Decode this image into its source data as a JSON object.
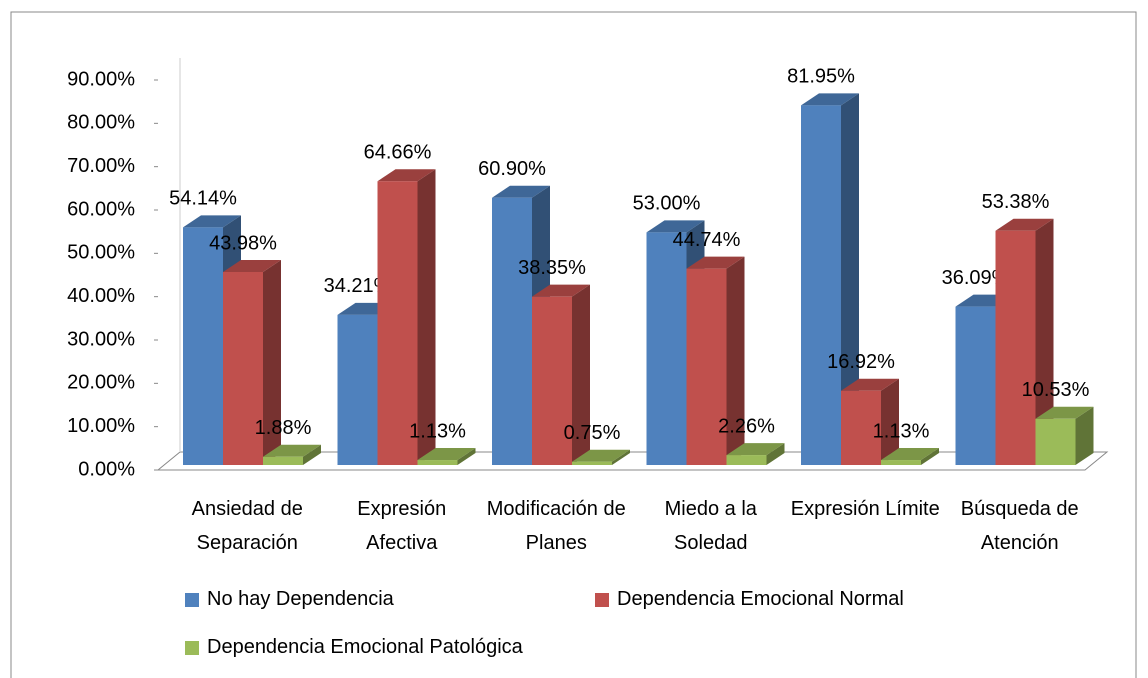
{
  "chart_data": {
    "type": "bar3d",
    "categories": [
      "Ansiedad de Separación",
      "Expresión Afectiva",
      "Modificación de Planes",
      "Miedo a la Soledad",
      "Expresión Límite",
      "Búsqueda de Atención"
    ],
    "series": [
      {
        "name": "No hay Dependencia",
        "color": "#4f81bd",
        "values": [
          54.14,
          34.21,
          60.9,
          53.0,
          81.95,
          36.09
        ],
        "value_labels": [
          "54.14%",
          "34.21%",
          "60.90%",
          "53.00%",
          "81.95%",
          "36.09%"
        ]
      },
      {
        "name": "Dependencia Emocional Normal",
        "color": "#c0504d",
        "values": [
          43.98,
          64.66,
          38.35,
          44.74,
          16.92,
          53.38
        ],
        "value_labels": [
          "43.98%",
          "64.66%",
          "38.35%",
          "44.74%",
          "16.92%",
          "53.38%"
        ]
      },
      {
        "name": "Dependencia Emocional Patológica",
        "color": "#9bbb59",
        "values": [
          1.88,
          1.13,
          0.75,
          2.26,
          1.13,
          10.53
        ],
        "value_labels": [
          "1.88%",
          "1.13%",
          "0.75%",
          "2.26%",
          "1.13%",
          "10.53%"
        ]
      }
    ],
    "ylim": [
      0,
      90
    ],
    "yticks": [
      {
        "value": 0,
        "label": "0.00%"
      },
      {
        "value": 10,
        "label": "10.00%"
      },
      {
        "value": 20,
        "label": "20.00%"
      },
      {
        "value": 30,
        "label": "30.00%"
      },
      {
        "value": 40,
        "label": "40.00%"
      },
      {
        "value": 50,
        "label": "50.00%"
      },
      {
        "value": 60,
        "label": "60.00%"
      },
      {
        "value": 70,
        "label": "70.00%"
      },
      {
        "value": 80,
        "label": "80.00%"
      },
      {
        "value": 90,
        "label": "90.00%"
      }
    ],
    "legend": "bottom"
  }
}
